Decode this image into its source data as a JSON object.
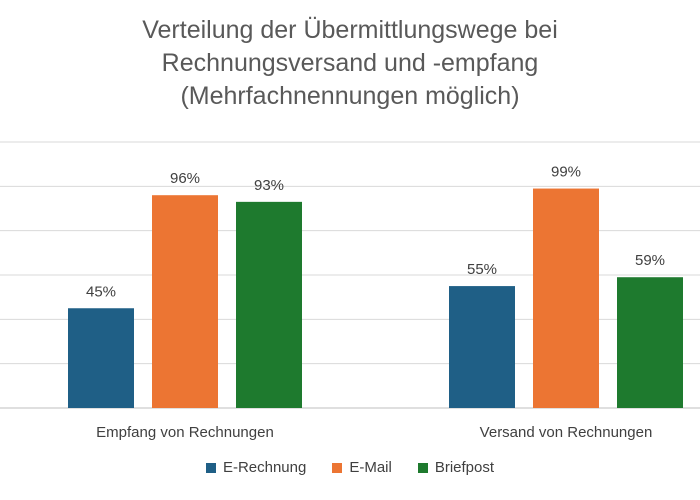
{
  "chart_data": {
    "type": "bar",
    "title_lines": [
      "Verteilung der Übermittlungswege bei",
      "Rechnungsversand und -empfang",
      "(Mehrfachnennungen möglich)"
    ],
    "categories": [
      "Empfang von Rechnungen",
      "Versand von Rechnungen"
    ],
    "series": [
      {
        "name": "E-Rechnung",
        "color": "#1f5f86",
        "values": [
          45,
          55
        ],
        "labels": [
          "45%",
          "55%"
        ]
      },
      {
        "name": "E-Mail",
        "color": "#ec7533",
        "values": [
          96,
          99
        ],
        "labels": [
          "96%",
          "99%"
        ]
      },
      {
        "name": "Briefpost",
        "color": "#1e7a2e",
        "values": [
          93,
          59
        ],
        "labels": [
          "93%",
          "59%"
        ]
      }
    ],
    "ylim": [
      0,
      120
    ],
    "grid": true,
    "legend_position": "bottom"
  }
}
